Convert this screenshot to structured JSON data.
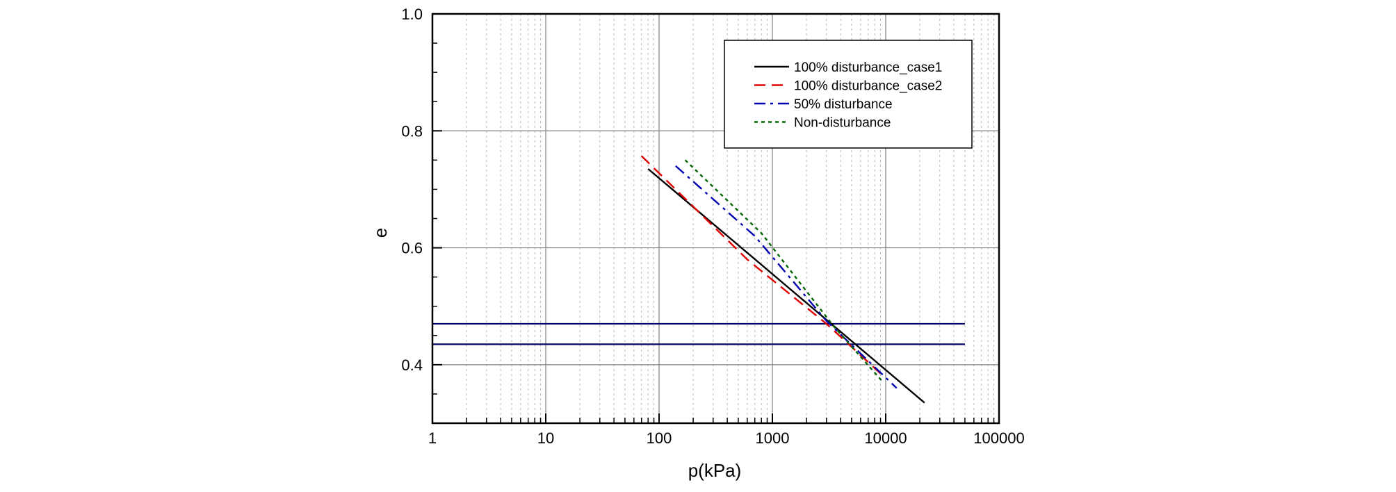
{
  "chart_data": {
    "type": "line",
    "title": "",
    "xlabel": "p(kPa)",
    "ylabel": "e",
    "xscale": "log",
    "xlim": [
      1,
      100000
    ],
    "ylim": [
      0.3,
      1.0
    ],
    "x_tick_labels": [
      "1",
      "10",
      "100",
      "1000",
      "10000",
      "100000"
    ],
    "x_tick_values": [
      1,
      10,
      100,
      1000,
      10000,
      100000
    ],
    "y_tick_labels": [
      "0.4",
      "0.6",
      "0.8",
      "1.0"
    ],
    "y_tick_values": [
      0.4,
      0.6,
      0.8,
      1.0
    ],
    "grid": true,
    "legend_position": "top-right",
    "series": [
      {
        "name": "100% disturbance_case1",
        "color": "#000000",
        "style": "solid",
        "x": [
          80,
          22000
        ],
        "y": [
          0.735,
          0.335
        ]
      },
      {
        "name": "100% disturbance_case2",
        "color": "#e00000",
        "style": "dashed",
        "x": [
          70,
          600,
          3000,
          9000
        ],
        "y": [
          0.757,
          0.58,
          0.47,
          0.385
        ]
      },
      {
        "name": "50% disturbance",
        "color": "#0000b0",
        "style": "dashdot",
        "x": [
          140,
          700,
          3000,
          12500
        ],
        "y": [
          0.74,
          0.62,
          0.475,
          0.36
        ]
      },
      {
        "name": "Non-disturbance",
        "color": "#006600",
        "style": "dotted",
        "x": [
          170,
          800,
          3500,
          9500
        ],
        "y": [
          0.75,
          0.625,
          0.465,
          0.37
        ]
      }
    ],
    "reference_lines": [
      {
        "name": "horizontal-line-upper",
        "y": 0.47,
        "x_start": 1,
        "x_end": 50000,
        "color": "#000066"
      },
      {
        "name": "horizontal-line-lower",
        "y": 0.435,
        "x_start": 1,
        "x_end": 50000,
        "color": "#000066"
      }
    ]
  }
}
